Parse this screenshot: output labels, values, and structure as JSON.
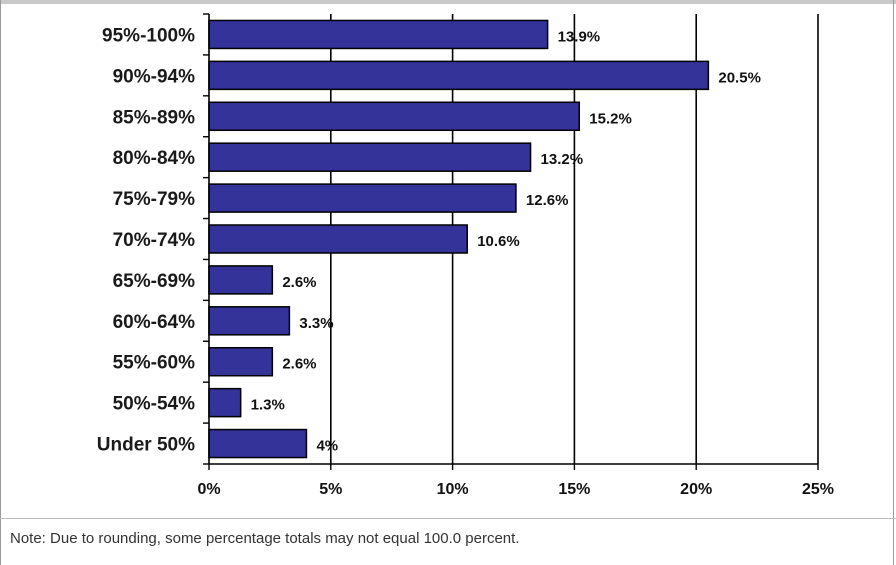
{
  "chart_data": {
    "type": "bar",
    "orientation": "horizontal",
    "categories": [
      "95%-100%",
      "90%-94%",
      "85%-89%",
      "80%-84%",
      "75%-79%",
      "70%-74%",
      "65%-69%",
      "60%-64%",
      "55%-60%",
      "50%-54%",
      "Under 50%"
    ],
    "values": [
      13.9,
      20.5,
      15.2,
      13.2,
      12.6,
      10.6,
      2.6,
      3.3,
      2.6,
      1.3,
      4
    ],
    "value_labels": [
      "13.9%",
      "20.5%",
      "15.2%",
      "13.2%",
      "12.6%",
      "10.6%",
      "2.6%",
      "3.3%",
      "2.6%",
      "1.3%",
      "4%"
    ],
    "x_ticks": [
      0,
      5,
      10,
      15,
      20,
      25
    ],
    "x_tick_labels": [
      "0%",
      "5%",
      "10%",
      "15%",
      "20%",
      "25%"
    ],
    "xlim": [
      0,
      25
    ],
    "grid": "vertical",
    "bar_color": "#33339a",
    "bar_edge_color": "#000000"
  },
  "note": "Note: Due to rounding, some percentage totals may not equal 100.0 percent."
}
